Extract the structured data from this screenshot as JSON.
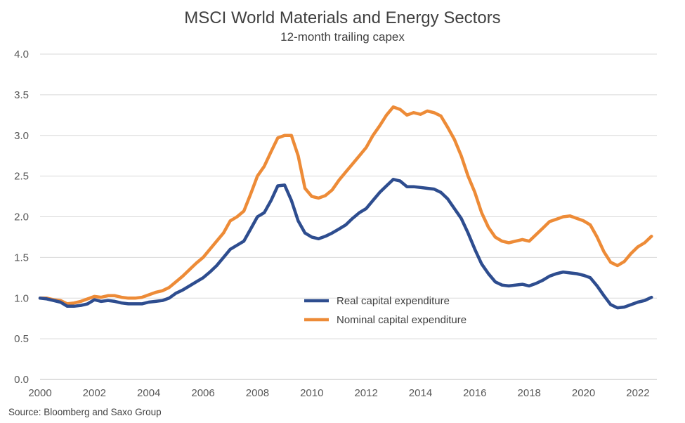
{
  "chart_data": {
    "type": "line",
    "title": "MSCI World Materials and Energy Sectors",
    "subtitle": "12-month trailing capex",
    "source": "Source: Bloomberg and Saxo Group",
    "xlabel": "",
    "ylabel": "",
    "xlim": [
      2000,
      2022.7
    ],
    "ylim": [
      0,
      4
    ],
    "x_ticks": [
      2000,
      2002,
      2004,
      2006,
      2008,
      2010,
      2012,
      2014,
      2016,
      2018,
      2020,
      2022
    ],
    "y_ticks": [
      0.0,
      0.5,
      1.0,
      1.5,
      2.0,
      2.5,
      3.0,
      3.5,
      4.0
    ],
    "y_tick_labels": [
      "0.0",
      "0.5",
      "1.0",
      "1.5",
      "2.0",
      "2.5",
      "3.0",
      "3.5",
      "4.0"
    ],
    "grid": "horizontal",
    "legend_position": "lower-center",
    "series": [
      {
        "name": "Real capital expenditure",
        "color": "#2e4d8f",
        "x": [
          2000,
          2000.25,
          2000.5,
          2000.75,
          2001,
          2001.25,
          2001.5,
          2001.75,
          2002,
          2002.25,
          2002.5,
          2002.75,
          2003,
          2003.25,
          2003.5,
          2003.75,
          2004,
          2004.25,
          2004.5,
          2004.75,
          2005,
          2005.25,
          2005.5,
          2005.75,
          2006,
          2006.25,
          2006.5,
          2006.75,
          2007,
          2007.25,
          2007.5,
          2007.75,
          2008,
          2008.25,
          2008.5,
          2008.75,
          2009,
          2009.25,
          2009.5,
          2009.75,
          2010,
          2010.25,
          2010.5,
          2010.75,
          2011,
          2011.25,
          2011.5,
          2011.75,
          2012,
          2012.25,
          2012.5,
          2012.75,
          2013,
          2013.25,
          2013.5,
          2013.75,
          2014,
          2014.25,
          2014.5,
          2014.75,
          2015,
          2015.25,
          2015.5,
          2015.75,
          2016,
          2016.25,
          2016.5,
          2016.75,
          2017,
          2017.25,
          2017.5,
          2017.75,
          2018,
          2018.25,
          2018.5,
          2018.75,
          2019,
          2019.25,
          2019.5,
          2019.75,
          2020,
          2020.25,
          2020.5,
          2020.75,
          2021,
          2021.25,
          2021.5,
          2021.75,
          2022,
          2022.25,
          2022.5
        ],
        "values": [
          1.0,
          0.99,
          0.97,
          0.95,
          0.9,
          0.9,
          0.91,
          0.93,
          0.98,
          0.96,
          0.97,
          0.96,
          0.94,
          0.93,
          0.93,
          0.93,
          0.95,
          0.96,
          0.97,
          1.0,
          1.06,
          1.1,
          1.15,
          1.2,
          1.25,
          1.32,
          1.4,
          1.5,
          1.6,
          1.65,
          1.7,
          1.85,
          2.0,
          2.05,
          2.2,
          2.38,
          2.39,
          2.2,
          1.95,
          1.8,
          1.75,
          1.73,
          1.76,
          1.8,
          1.85,
          1.9,
          1.98,
          2.05,
          2.1,
          2.2,
          2.3,
          2.38,
          2.46,
          2.44,
          2.37,
          2.37,
          2.36,
          2.35,
          2.34,
          2.3,
          2.22,
          2.1,
          1.98,
          1.8,
          1.6,
          1.42,
          1.3,
          1.2,
          1.16,
          1.15,
          1.16,
          1.17,
          1.15,
          1.18,
          1.22,
          1.27,
          1.3,
          1.32,
          1.31,
          1.3,
          1.28,
          1.25,
          1.15,
          1.03,
          0.92,
          0.88,
          0.89,
          0.92,
          0.95,
          0.97,
          1.01
        ]
      },
      {
        "name": "Nominal capital expenditure",
        "color": "#ed8b37",
        "x": [
          2000,
          2000.25,
          2000.5,
          2000.75,
          2001,
          2001.25,
          2001.5,
          2001.75,
          2002,
          2002.25,
          2002.5,
          2002.75,
          2003,
          2003.25,
          2003.5,
          2003.75,
          2004,
          2004.25,
          2004.5,
          2004.75,
          2005,
          2005.25,
          2005.5,
          2005.75,
          2006,
          2006.25,
          2006.5,
          2006.75,
          2007,
          2007.25,
          2007.5,
          2007.75,
          2008,
          2008.25,
          2008.5,
          2008.75,
          2009,
          2009.25,
          2009.5,
          2009.75,
          2010,
          2010.25,
          2010.5,
          2010.75,
          2011,
          2011.25,
          2011.5,
          2011.75,
          2012,
          2012.25,
          2012.5,
          2012.75,
          2013,
          2013.25,
          2013.5,
          2013.75,
          2014,
          2014.25,
          2014.5,
          2014.75,
          2015,
          2015.25,
          2015.5,
          2015.75,
          2016,
          2016.25,
          2016.5,
          2016.75,
          2017,
          2017.25,
          2017.5,
          2017.75,
          2018,
          2018.25,
          2018.5,
          2018.75,
          2019,
          2019.25,
          2019.5,
          2019.75,
          2020,
          2020.25,
          2020.5,
          2020.75,
          2021,
          2021.25,
          2021.5,
          2021.75,
          2022,
          2022.25,
          2022.5
        ],
        "values": [
          1.0,
          1.0,
          0.98,
          0.97,
          0.93,
          0.94,
          0.96,
          0.99,
          1.02,
          1.01,
          1.03,
          1.03,
          1.01,
          1.0,
          1.0,
          1.01,
          1.04,
          1.07,
          1.09,
          1.13,
          1.2,
          1.27,
          1.35,
          1.43,
          1.5,
          1.6,
          1.7,
          1.8,
          1.95,
          2.0,
          2.07,
          2.28,
          2.5,
          2.62,
          2.8,
          2.97,
          3.0,
          3.0,
          2.75,
          2.35,
          2.25,
          2.23,
          2.26,
          2.33,
          2.45,
          2.55,
          2.65,
          2.75,
          2.85,
          3.0,
          3.12,
          3.25,
          3.35,
          3.32,
          3.25,
          3.28,
          3.26,
          3.3,
          3.28,
          3.24,
          3.1,
          2.95,
          2.75,
          2.5,
          2.3,
          2.05,
          1.87,
          1.75,
          1.7,
          1.68,
          1.7,
          1.72,
          1.7,
          1.78,
          1.86,
          1.94,
          1.97,
          2.0,
          2.01,
          1.98,
          1.95,
          1.9,
          1.75,
          1.57,
          1.44,
          1.4,
          1.45,
          1.55,
          1.63,
          1.68,
          1.76
        ]
      }
    ]
  }
}
